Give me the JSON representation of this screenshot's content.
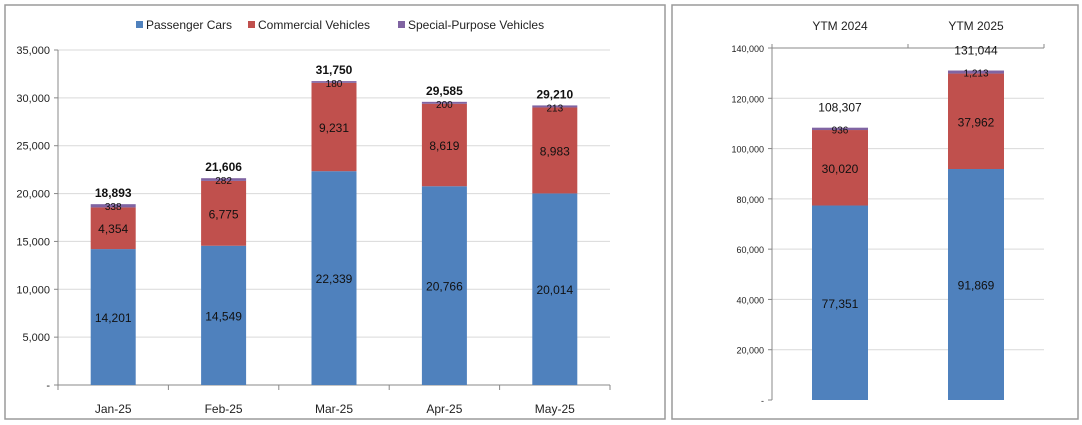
{
  "colors": {
    "passenger": "#4f81bd",
    "commercial": "#c0504d",
    "special": "#8064a2",
    "grid": "#d9d9d9",
    "axis": "#888888"
  },
  "chart_data": [
    {
      "type": "bar",
      "stacked": true,
      "categories": [
        "Jan-25",
        "Feb-25",
        "Mar-25",
        "Apr-25",
        "May-25"
      ],
      "series": [
        {
          "name": "Passenger Cars",
          "values": [
            14201,
            14549,
            22339,
            20766,
            20014
          ],
          "labels": [
            "14,201",
            "14,549",
            "22,339",
            "20,766",
            "20,014"
          ]
        },
        {
          "name": "Commercial Vehicles",
          "values": [
            4354,
            6775,
            9231,
            8619,
            8983
          ],
          "labels": [
            "4,354",
            "6,775",
            "9,231",
            "8,619",
            "8,983"
          ]
        },
        {
          "name": "Special-Purpose Vehicles",
          "values": [
            338,
            282,
            180,
            200,
            213
          ],
          "labels": [
            "338",
            "282",
            "180",
            "200",
            "213"
          ]
        }
      ],
      "totals": [
        "18,893",
        "21,606",
        "31,750",
        "29,585",
        "29,210"
      ],
      "ylim": [
        0,
        35000
      ],
      "yticks": [
        0,
        5000,
        10000,
        15000,
        20000,
        25000,
        30000,
        35000
      ],
      "ytick_labels": [
        "-",
        "5,000",
        "10,000",
        "15,000",
        "20,000",
        "25,000",
        "30,000",
        "35,000"
      ],
      "grid": true,
      "legend": "top"
    },
    {
      "type": "bar",
      "stacked": true,
      "categories": [
        "YTM 2024",
        "YTM 2025"
      ],
      "series": [
        {
          "values": [
            77351,
            91869
          ],
          "labels": [
            "77,351",
            "91,869"
          ]
        },
        {
          "values": [
            30020,
            37962
          ],
          "labels": [
            "30,020",
            "37,962"
          ]
        },
        {
          "values": [
            936,
            1213
          ],
          "labels": [
            "936",
            "1,213"
          ]
        }
      ],
      "totals": [
        "108,307",
        "131,044"
      ],
      "ylim": [
        0,
        140000
      ],
      "yticks": [
        0,
        20000,
        40000,
        60000,
        80000,
        100000,
        120000,
        140000
      ],
      "ytick_labels": [
        "-",
        "20,000",
        "40,000",
        "60,000",
        "80,000",
        "100,000",
        "120,000",
        "140,000"
      ],
      "grid": true,
      "category_axis": "top"
    }
  ]
}
